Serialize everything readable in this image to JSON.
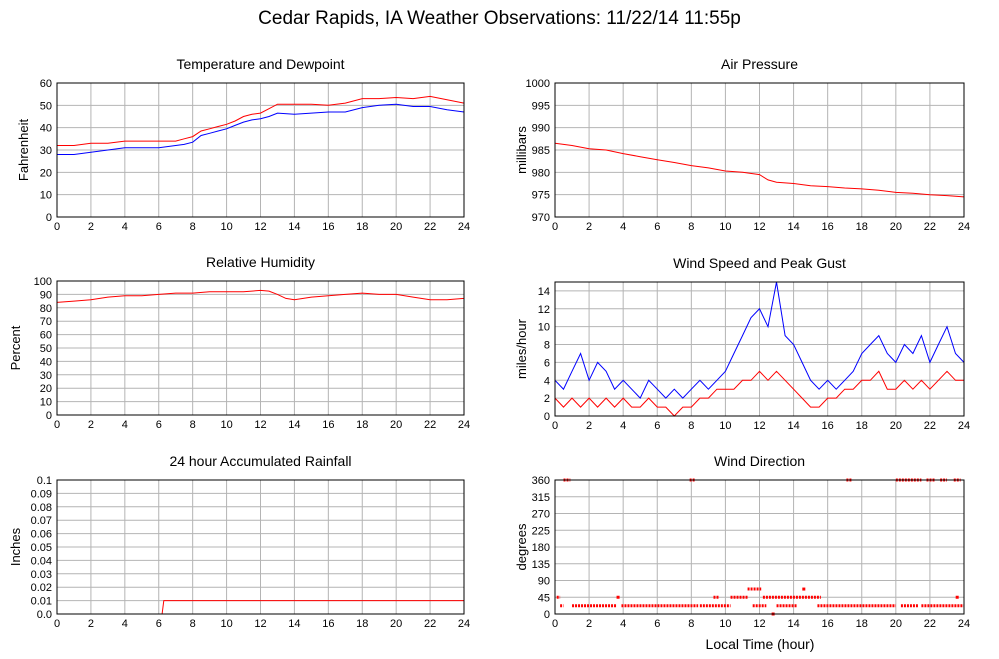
{
  "title": "Cedar Rapids, IA Weather Observations: 11/22/14 11:55p",
  "shared_xlabel": "Local Time (hour)",
  "colors": {
    "red": "#ff0000",
    "blue": "#0000ff",
    "grid": "#b4b4b4",
    "frame": "#000000"
  },
  "chart_data": [
    {
      "id": "temp",
      "type": "line",
      "title": "Temperature and Dewpoint",
      "ylabel": "Fahrenheit",
      "xlabel": "",
      "xlim": [
        0,
        24
      ],
      "ylim": [
        0,
        60
      ],
      "xticks": [
        0,
        2,
        4,
        6,
        8,
        10,
        12,
        14,
        16,
        18,
        20,
        22,
        24
      ],
      "yticks": [
        0,
        10,
        20,
        30,
        40,
        50,
        60
      ],
      "grid": true,
      "series": [
        {
          "color": "#ff0000",
          "x": [
            0,
            1,
            2,
            3,
            4,
            5,
            6,
            7,
            7.5,
            8,
            8.5,
            9,
            9.5,
            10,
            10.5,
            11,
            11.5,
            12,
            12.5,
            13,
            14,
            15,
            16,
            17,
            18,
            19,
            20,
            21,
            22,
            23,
            24
          ],
          "y": [
            32,
            32,
            33,
            33,
            34,
            34,
            34,
            34,
            35,
            36,
            38.5,
            39.5,
            40.5,
            41.5,
            43,
            45,
            46,
            46.5,
            48.5,
            50.5,
            50.5,
            50.5,
            50,
            51,
            53,
            53,
            53.5,
            53,
            54,
            52.5,
            51
          ]
        },
        {
          "color": "#0000ff",
          "x": [
            0,
            1,
            2,
            3,
            4,
            5,
            6,
            7,
            7.5,
            8,
            8.5,
            9,
            9.5,
            10,
            10.5,
            11,
            11.5,
            12,
            12.5,
            13,
            14,
            15,
            16,
            17,
            18,
            19,
            20,
            21,
            22,
            23,
            24
          ],
          "y": [
            28,
            28,
            29,
            30,
            31,
            31,
            31,
            32,
            32.5,
            33.5,
            36.5,
            37.5,
            38.5,
            39.5,
            41,
            42.5,
            43.5,
            44,
            45,
            46.5,
            46,
            46.5,
            47,
            47,
            49,
            50,
            50.5,
            49.5,
            49.5,
            48,
            47
          ]
        }
      ]
    },
    {
      "id": "pressure",
      "type": "line",
      "title": "Air Pressure",
      "ylabel": "millibars",
      "xlabel": "",
      "xlim": [
        0,
        24
      ],
      "ylim": [
        970,
        1000
      ],
      "xticks": [
        0,
        2,
        4,
        6,
        8,
        10,
        12,
        14,
        16,
        18,
        20,
        22,
        24
      ],
      "yticks": [
        970,
        975,
        980,
        985,
        990,
        995,
        1000
      ],
      "grid": true,
      "series": [
        {
          "color": "#ff0000",
          "x": [
            0,
            1,
            2,
            3,
            4,
            5,
            6,
            7,
            8,
            9,
            10,
            11,
            12,
            12.5,
            13,
            14,
            15,
            16,
            17,
            18,
            19,
            20,
            21,
            22,
            23,
            24
          ],
          "y": [
            986.5,
            986,
            985.3,
            985,
            984.2,
            983.5,
            982.8,
            982.2,
            981.5,
            981,
            980.3,
            980,
            979.5,
            978.3,
            977.8,
            977.5,
            977,
            976.8,
            976.5,
            976.3,
            976,
            975.5,
            975.3,
            975,
            974.8,
            974.5
          ]
        }
      ]
    },
    {
      "id": "humidity",
      "type": "line",
      "title": "Relative Humidity",
      "ylabel": "Percent",
      "xlabel": "",
      "xlim": [
        0,
        24
      ],
      "ylim": [
        0,
        100
      ],
      "xticks": [
        0,
        2,
        4,
        6,
        8,
        10,
        12,
        14,
        16,
        18,
        20,
        22,
        24
      ],
      "yticks": [
        0,
        10,
        20,
        30,
        40,
        50,
        60,
        70,
        80,
        90,
        100
      ],
      "grid": true,
      "series": [
        {
          "color": "#ff0000",
          "x": [
            0,
            1,
            2,
            3,
            4,
            5,
            6,
            7,
            8,
            9,
            10,
            11,
            12,
            12.5,
            13,
            13.5,
            14,
            15,
            16,
            17,
            18,
            19,
            20,
            21,
            22,
            23,
            24
          ],
          "y": [
            84,
            85,
            86,
            88,
            89,
            89,
            90,
            91,
            91,
            92,
            92,
            92,
            93,
            92.5,
            90,
            87,
            86,
            88,
            89,
            90,
            91,
            90,
            90,
            88,
            86,
            86,
            87
          ]
        }
      ]
    },
    {
      "id": "wind",
      "type": "line",
      "title": "Wind Speed and Peak Gust",
      "ylabel": "miles/hour",
      "xlabel": "",
      "xlim": [
        0,
        24
      ],
      "ylim": [
        0,
        15
      ],
      "xticks": [
        0,
        2,
        4,
        6,
        8,
        10,
        12,
        14,
        16,
        18,
        20,
        22,
        24
      ],
      "yticks": [
        0,
        2,
        4,
        6,
        8,
        10,
        12,
        14
      ],
      "grid": true,
      "series": [
        {
          "color": "#0000ff",
          "x": [
            0,
            0.5,
            1,
            1.5,
            2,
            2.5,
            3,
            3.5,
            4,
            4.5,
            5,
            5.5,
            6,
            6.5,
            7,
            7.5,
            8,
            8.5,
            9,
            9.5,
            10,
            10.5,
            11,
            11.5,
            12,
            12.5,
            13,
            13.5,
            14,
            14.5,
            15,
            15.5,
            16,
            16.5,
            17,
            17.5,
            18,
            18.5,
            19,
            19.5,
            20,
            20.5,
            21,
            21.5,
            22,
            22.5,
            23,
            23.5,
            24
          ],
          "y": [
            4,
            3,
            5,
            7,
            4,
            6,
            5,
            3,
            4,
            3,
            2,
            4,
            3,
            2,
            3,
            2,
            3,
            4,
            3,
            4,
            5,
            7,
            9,
            11,
            12,
            10,
            15,
            9,
            8,
            6,
            4,
            3,
            4,
            3,
            4,
            5,
            7,
            8,
            9,
            7,
            6,
            8,
            7,
            9,
            6,
            8,
            10,
            7,
            6
          ]
        },
        {
          "color": "#ff0000",
          "x": [
            0,
            0.5,
            1,
            1.5,
            2,
            2.5,
            3,
            3.5,
            4,
            4.5,
            5,
            5.5,
            6,
            6.5,
            7,
            7.5,
            8,
            8.5,
            9,
            9.5,
            10,
            10.5,
            11,
            11.5,
            12,
            12.5,
            13,
            13.5,
            14,
            14.5,
            15,
            15.5,
            16,
            16.5,
            17,
            17.5,
            18,
            18.5,
            19,
            19.5,
            20,
            20.5,
            21,
            21.5,
            22,
            22.5,
            23,
            23.5,
            24
          ],
          "y": [
            2,
            1,
            2,
            1,
            2,
            1,
            2,
            1,
            2,
            1,
            1,
            2,
            1,
            1,
            0,
            1,
            1,
            2,
            2,
            3,
            3,
            3,
            4,
            4,
            5,
            4,
            5,
            4,
            3,
            2,
            1,
            1,
            2,
            2,
            3,
            3,
            4,
            4,
            5,
            3,
            3,
            4,
            3,
            4,
            3,
            4,
            5,
            4,
            4
          ]
        }
      ]
    },
    {
      "id": "rain",
      "type": "line",
      "title": "24 hour Accumulated Rainfall",
      "ylabel": "Inches",
      "xlabel": "",
      "xlim": [
        0,
        24
      ],
      "ylim": [
        0,
        0.1
      ],
      "xticks": [
        0,
        2,
        4,
        6,
        8,
        10,
        12,
        14,
        16,
        18,
        20,
        22,
        24
      ],
      "yticks": [
        0.0,
        0.01,
        0.02,
        0.03,
        0.04,
        0.05,
        0.06,
        0.07,
        0.08,
        0.09,
        0.1
      ],
      "ytick_labels": [
        "0.0",
        "0.01",
        "0.02",
        "0.03",
        "0.04",
        "0.05",
        "0.06",
        "0.07",
        "0.08",
        "0.09",
        "0.1"
      ],
      "grid": true,
      "series": [
        {
          "color": "#ff0000",
          "x": [
            0,
            6.2,
            6.3,
            24
          ],
          "y": [
            0,
            0,
            0.01,
            0.01
          ]
        }
      ]
    },
    {
      "id": "direction",
      "type": "scatter",
      "title": "Wind Direction",
      "ylabel": "degrees",
      "xlabel": "",
      "xlim": [
        0,
        24
      ],
      "ylim": [
        0,
        360
      ],
      "xticks": [
        0,
        2,
        4,
        6,
        8,
        10,
        12,
        14,
        16,
        18,
        20,
        22,
        24
      ],
      "yticks": [
        0,
        45,
        90,
        135,
        180,
        225,
        270,
        315,
        360
      ],
      "grid": true,
      "series": [
        {
          "color": "#ff0000",
          "segments": [
            {
              "x0": 0.1,
              "x1": 0.3,
              "y": 45
            },
            {
              "x0": 0.5,
              "x1": 0.9,
              "y": 360
            },
            {
              "x0": 0.3,
              "x1": 0.5,
              "y": 22
            },
            {
              "x0": 1.0,
              "x1": 3.6,
              "y": 22
            },
            {
              "x0": 3.9,
              "x1": 8.4,
              "y": 22
            },
            {
              "x0": 7.9,
              "x1": 8.2,
              "y": 360
            },
            {
              "x0": 8.5,
              "x1": 10.3,
              "y": 22
            },
            {
              "x0": 9.3,
              "x1": 9.6,
              "y": 45
            },
            {
              "x0": 10.3,
              "x1": 11.3,
              "y": 45
            },
            {
              "x0": 11.3,
              "x1": 12.1,
              "y": 67
            },
            {
              "x0": 11.6,
              "x1": 12.4,
              "y": 22
            },
            {
              "x0": 12.2,
              "x1": 15.6,
              "y": 45
            },
            {
              "x0": 13.0,
              "x1": 14.2,
              "y": 22
            },
            {
              "x0": 15.4,
              "x1": 20.0,
              "y": 22
            },
            {
              "x0": 17.1,
              "x1": 17.4,
              "y": 360
            },
            {
              "x0": 20.3,
              "x1": 21.3,
              "y": 22
            },
            {
              "x0": 20.0,
              "x1": 21.5,
              "y": 360
            },
            {
              "x0": 21.5,
              "x1": 24.0,
              "y": 22
            },
            {
              "x0": 21.8,
              "x1": 22.3,
              "y": 360
            },
            {
              "x0": 22.6,
              "x1": 23.0,
              "y": 360
            },
            {
              "x0": 23.4,
              "x1": 23.8,
              "y": 360
            }
          ],
          "points": [
            {
              "x": 3.7,
              "y": 45
            },
            {
              "x": 14.6,
              "y": 67
            },
            {
              "x": 23.6,
              "y": 45
            },
            {
              "x": 12.8,
              "y": 0
            }
          ]
        }
      ]
    }
  ]
}
